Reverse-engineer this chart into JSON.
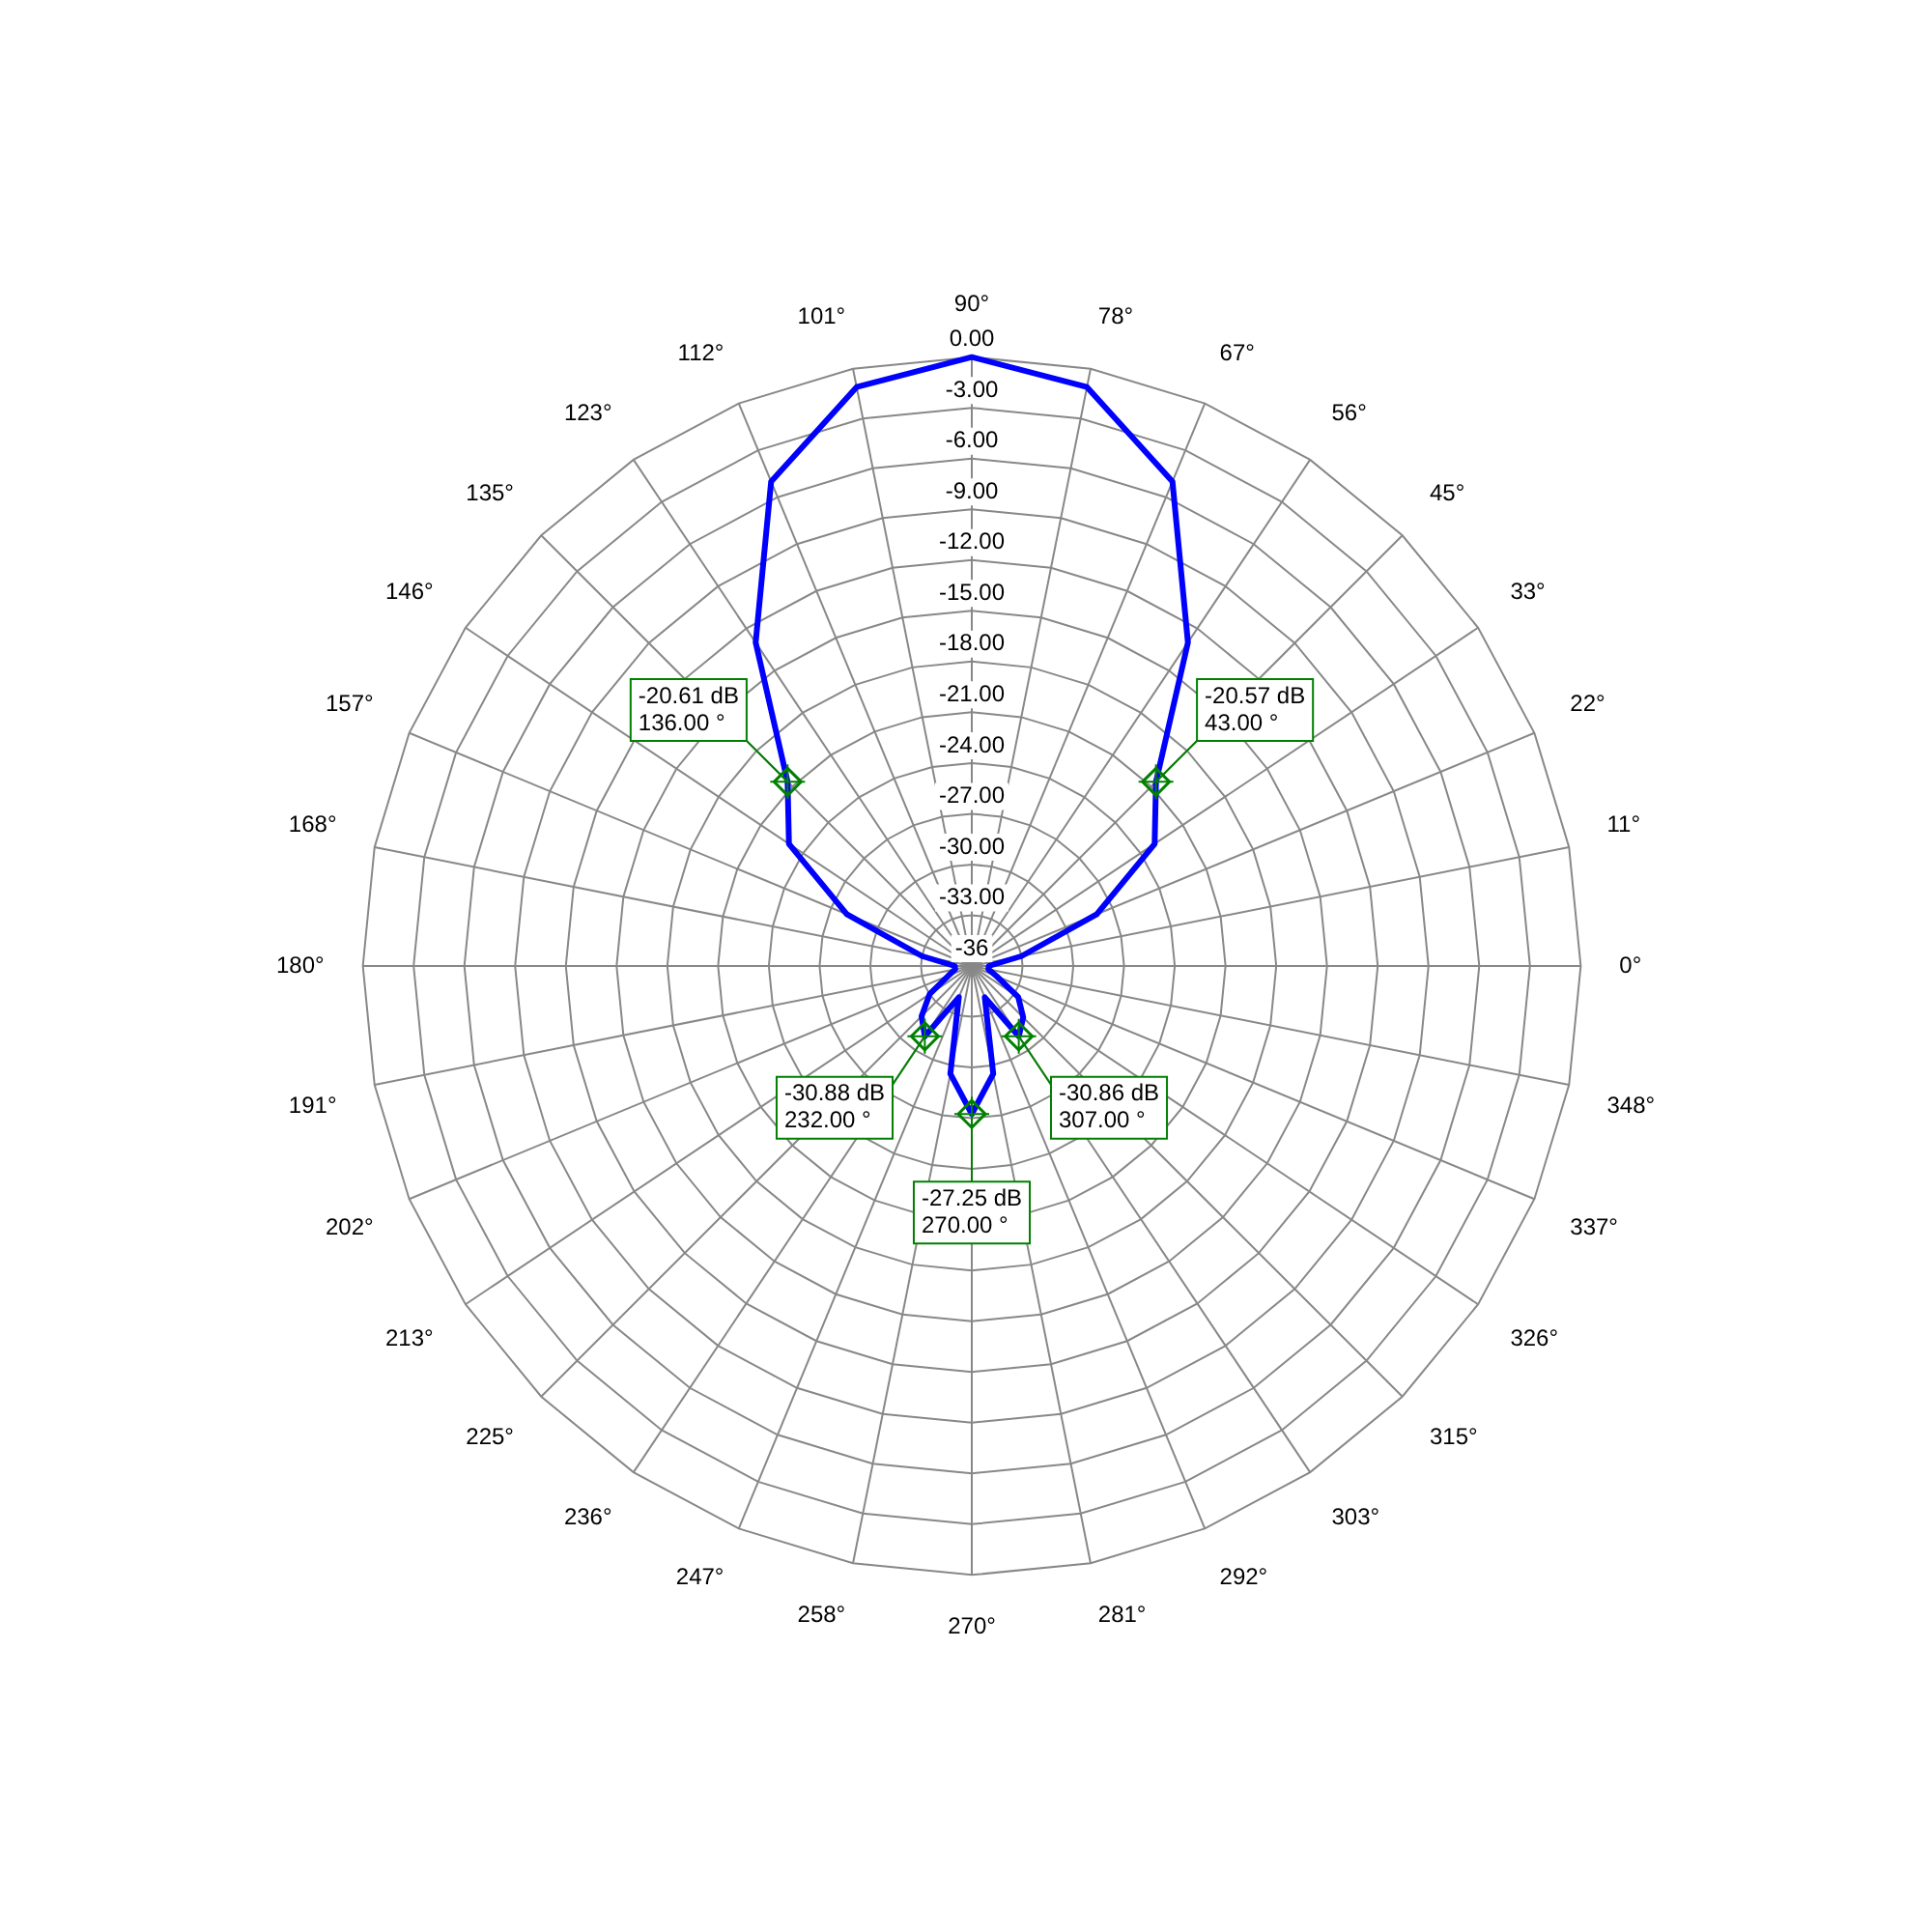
{
  "chart_data": {
    "type": "radar",
    "categories": [
      "90°",
      "78°",
      "67°",
      "56°",
      "45°",
      "33°",
      "22°",
      "11°",
      "0°",
      "348°",
      "337°",
      "326°",
      "315°",
      "303°",
      "292°",
      "281°",
      "270°",
      "258°",
      "247°",
      "236°",
      "225°",
      "213°",
      "202°",
      "191°",
      "180°",
      "168°",
      "157°",
      "146°",
      "135°",
      "123°",
      "112°",
      "101°"
    ],
    "series": [
      {
        "color": "#0000ff",
        "values": [
          0,
          -1.1,
          -5,
          -13,
          -20.6,
          -23,
          -28,
          -33,
          -35,
          -35,
          -34.4,
          -32.7,
          -31.7,
          -31,
          -34,
          -29.5,
          -27.25,
          -29.5,
          -34,
          -31,
          -31.8,
          -33,
          -34.5,
          -35,
          -35,
          -33,
          -28,
          -23,
          -20.6,
          -13,
          -5,
          -1.1
        ]
      }
    ],
    "ylim": [
      -36,
      0
    ],
    "yticks": [
      {
        "value": -36,
        "label": "-36"
      },
      {
        "value": -33,
        "label": "-33.00"
      },
      {
        "value": -30,
        "label": "-30.00"
      },
      {
        "value": -27,
        "label": "-27.00"
      },
      {
        "value": -24,
        "label": "-24.00"
      },
      {
        "value": -21,
        "label": "-21.00"
      },
      {
        "value": -18,
        "label": "-18.00"
      },
      {
        "value": -15,
        "label": "-15.00"
      },
      {
        "value": -12,
        "label": "-12.00"
      },
      {
        "value": -9,
        "label": "-9.00"
      },
      {
        "value": -6,
        "label": "-6.00"
      },
      {
        "value": -3,
        "label": "-3.00"
      },
      {
        "value": 0,
        "label": "0.00"
      }
    ],
    "grid": true,
    "legend": false,
    "marker": "none",
    "line_style": "solid",
    "annotations": [
      {
        "text": "-20.57 dB\n43.00 °",
        "x": "45°"
      },
      {
        "text": "-20.61 dB\n136.00 °",
        "x": "135°"
      },
      {
        "text": "-30.88 dB\n232.00 °",
        "x": "236°"
      },
      {
        "text": "-27.25 dB\n270.00 °",
        "x": "270°"
      },
      {
        "text": "-30.86 dB\n307.00 °",
        "x": "303°"
      }
    ]
  }
}
